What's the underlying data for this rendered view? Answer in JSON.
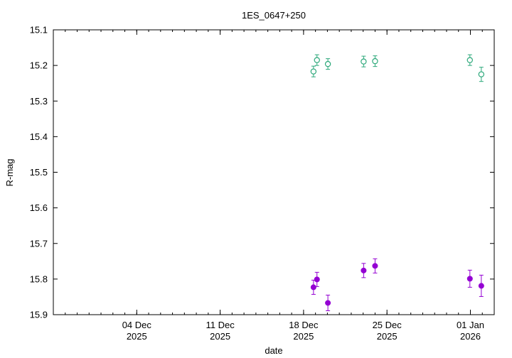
{
  "chart_data": {
    "type": "scatter",
    "title": "1ES_0647+250",
    "xlabel": "date",
    "ylabel": "R-mag",
    "x_axis": {
      "type": "date",
      "range": [
        "2025-11-27",
        "2026-01-03"
      ],
      "ticks": [
        {
          "date": "2025-12-04",
          "label1": "04 Dec",
          "label2": "2025"
        },
        {
          "date": "2025-12-11",
          "label1": "11 Dec",
          "label2": "2025"
        },
        {
          "date": "2025-12-18",
          "label1": "18 Dec",
          "label2": "2025"
        },
        {
          "date": "2025-12-25",
          "label1": "25 Dec",
          "label2": "2025"
        },
        {
          "date": "2026-01-01",
          "label1": "01 Jan",
          "label2": "2026"
        }
      ]
    },
    "y_axis": {
      "range": [
        15.1,
        15.9
      ],
      "inverted": true,
      "ticks": [
        "15.1",
        "15.2",
        "15.3",
        "15.4",
        "15.5",
        "15.6",
        "15.7",
        "15.8",
        "15.9"
      ]
    },
    "grid": false,
    "series": [
      {
        "marker": "open-circle",
        "color": "#2ca87a",
        "points": [
          {
            "x": "2025-12-18T20:00",
            "y": 15.217,
            "err": 0.015
          },
          {
            "x": "2025-12-19T03:00",
            "y": 15.185,
            "err": 0.015
          },
          {
            "x": "2025-12-20T01:00",
            "y": 15.196,
            "err": 0.015
          },
          {
            "x": "2025-12-23T01:00",
            "y": 15.189,
            "err": 0.015
          },
          {
            "x": "2025-12-24T00:00",
            "y": 15.188,
            "err": 0.015
          },
          {
            "x": "2025-12-31T23:00",
            "y": 15.185,
            "err": 0.015
          },
          {
            "x": "2026-01-01T22:00",
            "y": 15.225,
            "err": 0.02
          }
        ]
      },
      {
        "marker": "filled-circle",
        "color": "#9400d3",
        "points": [
          {
            "x": "2025-12-18T20:00",
            "y": 15.823,
            "err": 0.02
          },
          {
            "x": "2025-12-19T03:00",
            "y": 15.801,
            "err": 0.02
          },
          {
            "x": "2025-12-20T01:00",
            "y": 15.867,
            "err": 0.022
          },
          {
            "x": "2025-12-23T01:00",
            "y": 15.776,
            "err": 0.02
          },
          {
            "x": "2025-12-24T00:00",
            "y": 15.763,
            "err": 0.02
          },
          {
            "x": "2025-12-31T23:00",
            "y": 15.799,
            "err": 0.024
          },
          {
            "x": "2026-01-01T22:00",
            "y": 15.819,
            "err": 0.03
          }
        ]
      }
    ]
  }
}
